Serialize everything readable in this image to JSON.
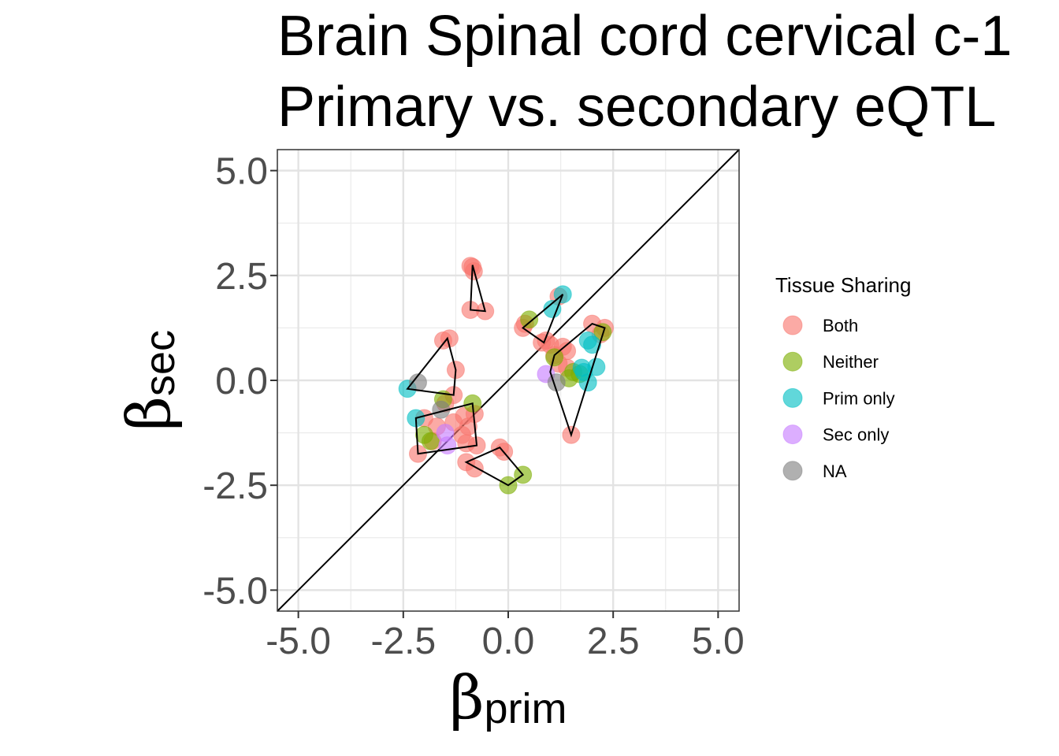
{
  "chart_data": {
    "type": "scatter",
    "title_lines": [
      "Brain Spinal cord cervical c-1",
      "Primary vs. secondary eQTL"
    ],
    "xlabel": {
      "symbol": "β",
      "subscript": "prim"
    },
    "ylabel": {
      "symbol": "β",
      "subscript": "sec"
    },
    "xlim": [
      -5.5,
      5.5
    ],
    "ylim": [
      -5.5,
      5.5
    ],
    "x_ticks": [
      -5.0,
      -2.5,
      0.0,
      2.5,
      5.0
    ],
    "y_ticks": [
      -5.0,
      -2.5,
      0.0,
      2.5,
      5.0
    ],
    "x_tick_labels": [
      "-5.0",
      "-2.5",
      "0.0",
      "2.5",
      "5.0"
    ],
    "y_tick_labels": [
      "5.0",
      "2.5",
      "0.0",
      "-2.5",
      "-5.0"
    ],
    "grid": true,
    "reference_line": "y = x",
    "legend": {
      "title": "Tissue Sharing",
      "position": "right",
      "entries": [
        "Both",
        "Neither",
        "Prim only",
        "Sec only",
        "NA"
      ]
    },
    "colors": {
      "Both": "#F8766D",
      "Neither": "#7CAE00",
      "Prim only": "#00BFC4",
      "Sec only": "#C77CFF",
      "NA": "#808080"
    },
    "series": [
      {
        "name": "Both",
        "points": [
          [
            -0.9,
            2.73
          ],
          [
            -0.85,
            2.7
          ],
          [
            -0.82,
            2.6
          ],
          [
            -0.9,
            1.68
          ],
          [
            -0.55,
            1.65
          ],
          [
            -1.55,
            0.95
          ],
          [
            -1.4,
            1.0
          ],
          [
            -1.25,
            0.25
          ],
          [
            -1.3,
            -0.35
          ],
          [
            -1.5,
            -0.55
          ],
          [
            -2.0,
            -0.9
          ],
          [
            -1.7,
            -1.1
          ],
          [
            -1.8,
            -1.45
          ],
          [
            -2.15,
            -1.75
          ],
          [
            -1.05,
            -0.85
          ],
          [
            -0.95,
            -1.1
          ],
          [
            -0.8,
            -0.8
          ],
          [
            -1.1,
            -1.3
          ],
          [
            -1.0,
            -1.5
          ],
          [
            -0.75,
            -1.55
          ],
          [
            -1.0,
            -1.95
          ],
          [
            -0.8,
            -2.1
          ],
          [
            -0.2,
            -1.6
          ],
          [
            -0.1,
            -1.7
          ],
          [
            0.35,
            1.25
          ],
          [
            0.4,
            1.35
          ],
          [
            0.8,
            0.9
          ],
          [
            0.9,
            0.95
          ],
          [
            1.0,
            0.85
          ],
          [
            1.2,
            2.0
          ],
          [
            1.1,
            0.6
          ],
          [
            1.3,
            0.8
          ],
          [
            1.4,
            0.7
          ],
          [
            1.2,
            0.4
          ],
          [
            1.4,
            0.3
          ],
          [
            1.5,
            -1.3
          ],
          [
            2.0,
            1.35
          ],
          [
            2.3,
            1.25
          ],
          [
            2.2,
            1.1
          ],
          [
            -1.3,
            -1.0
          ]
        ]
      },
      {
        "name": "Neither",
        "points": [
          [
            -2.0,
            -1.3
          ],
          [
            -1.85,
            -1.45
          ],
          [
            -0.85,
            -0.55
          ],
          [
            0.35,
            -2.25
          ],
          [
            0.0,
            -2.5
          ],
          [
            0.5,
            1.45
          ],
          [
            1.1,
            0.55
          ],
          [
            1.55,
            0.2
          ],
          [
            1.7,
            0.15
          ],
          [
            2.25,
            1.15
          ],
          [
            -1.55,
            -0.45
          ],
          [
            1.45,
            0.05
          ]
        ]
      },
      {
        "name": "Prim only",
        "points": [
          [
            -2.4,
            -0.2
          ],
          [
            -2.2,
            -0.9
          ],
          [
            1.05,
            1.7
          ],
          [
            1.3,
            2.05
          ],
          [
            1.9,
            0.95
          ],
          [
            2.0,
            0.85
          ],
          [
            1.75,
            0.3
          ],
          [
            2.1,
            0.32
          ],
          [
            1.9,
            -0.05
          ],
          [
            1.8,
            0.2
          ]
        ]
      },
      {
        "name": "Sec only",
        "points": [
          [
            -1.45,
            -1.55
          ],
          [
            -1.5,
            -1.25
          ],
          [
            0.9,
            0.15
          ]
        ]
      },
      {
        "name": "NA",
        "points": [
          [
            -2.15,
            -0.05
          ],
          [
            -1.6,
            -0.7
          ],
          [
            1.15,
            -0.05
          ]
        ]
      }
    ],
    "hulls": [
      [
        [
          -0.85,
          2.75
        ],
        [
          -0.55,
          1.65
        ],
        [
          -0.9,
          1.68
        ]
      ],
      [
        [
          -2.4,
          -0.2
        ],
        [
          -1.45,
          1.0
        ],
        [
          -1.25,
          0.25
        ],
        [
          -1.3,
          -0.35
        ]
      ],
      [
        [
          -2.2,
          -0.9
        ],
        [
          -0.85,
          -0.55
        ],
        [
          -0.75,
          -1.55
        ],
        [
          -2.15,
          -1.75
        ]
      ],
      [
        [
          -1.0,
          -1.95
        ],
        [
          -0.2,
          -1.6
        ],
        [
          0.35,
          -2.25
        ],
        [
          0.0,
          -2.5
        ]
      ],
      [
        [
          0.35,
          1.25
        ],
        [
          1.3,
          2.05
        ],
        [
          0.85,
          0.9
        ]
      ],
      [
        [
          2.0,
          1.35
        ],
        [
          2.3,
          1.25
        ],
        [
          1.5,
          -1.3
        ],
        [
          1.0,
          0.2
        ],
        [
          1.1,
          0.6
        ]
      ]
    ]
  }
}
